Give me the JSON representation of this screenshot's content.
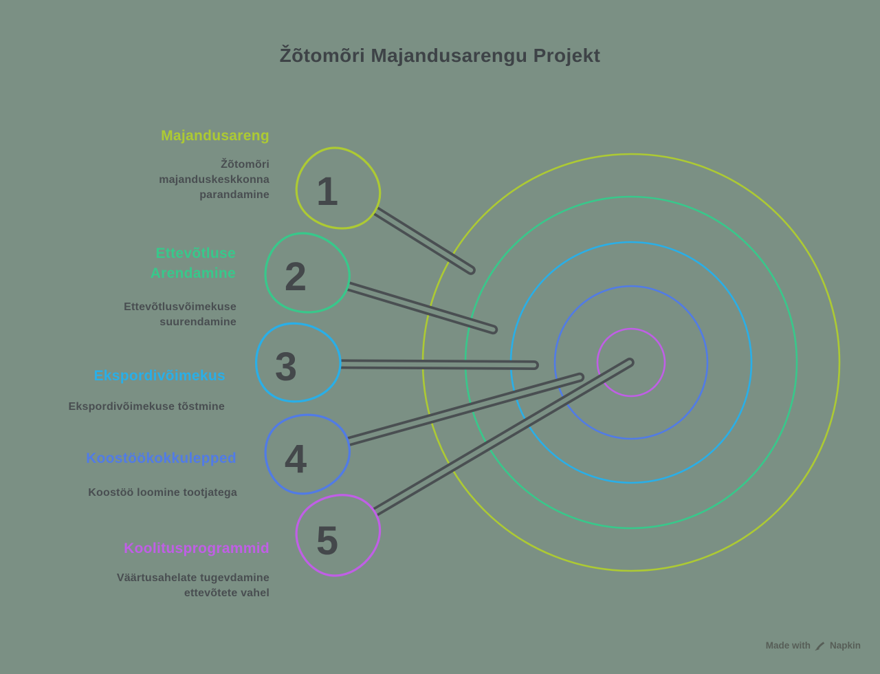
{
  "title": "Žõtomõri Majandusarengu Projekt",
  "items": [
    {
      "number": "1",
      "label": "Majandusareng",
      "description": "Žõtomõri\nmajanduskeskkonna\nparandamine",
      "color": "#adca33"
    },
    {
      "number": "2",
      "label": "Ettevõtluse\nArendamine",
      "description": "Ettevõtlusvõimekuse\nsuurendamine",
      "color": "#38c88b"
    },
    {
      "number": "3",
      "label": "Ekspordivõimekus",
      "description": "Ekspordivõimekuse tõstmine",
      "color": "#29afe8"
    },
    {
      "number": "4",
      "label": "Koostöökokkulepped",
      "description": "Koostöö loomine tootjatega",
      "color": "#517be6"
    },
    {
      "number": "5",
      "label": "Koolitusprogrammid",
      "description": "Väärtusahelate tugevdamine\nettevõtete vahel",
      "color": "#c05fe6"
    }
  ],
  "target": {
    "ring_colors_outer_to_inner": [
      "#adca33",
      "#38c88b",
      "#29afe8",
      "#517be6",
      "#c05fe6"
    ]
  },
  "colors": {
    "background": "#7b9084",
    "ink": "#3e4347",
    "description_text": "#494e51",
    "dart_outline": "#4a4f52",
    "number_text": "#44484b"
  },
  "watermark": {
    "prefix": "Made with",
    "brand": "Napkin"
  }
}
